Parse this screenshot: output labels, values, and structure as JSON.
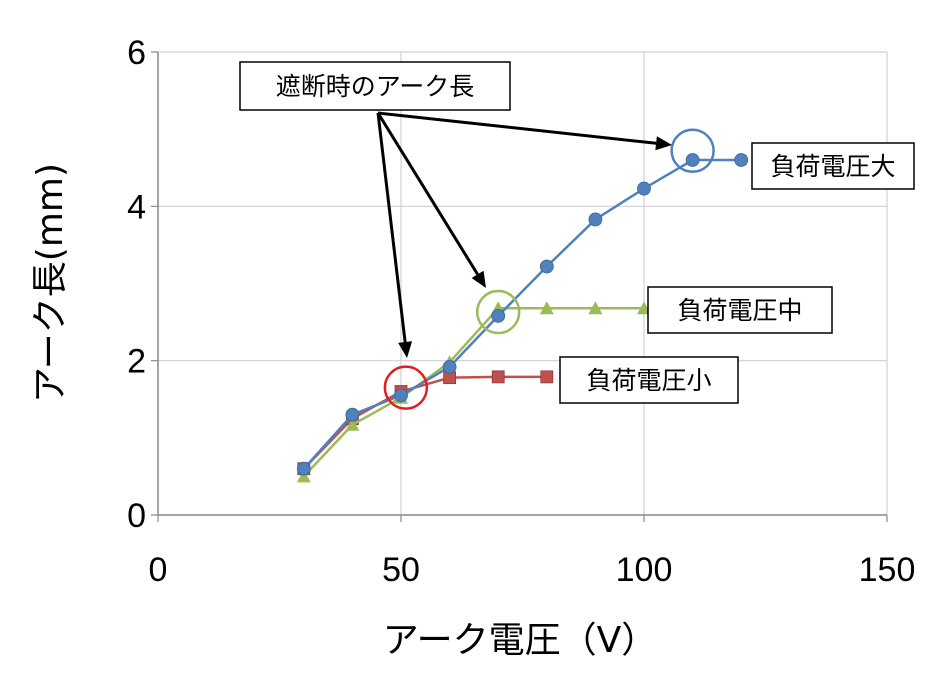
{
  "chart_data": {
    "type": "line",
    "title": "",
    "xlabel": "アーク電圧（V）",
    "ylabel": "アーク長(mm)",
    "xlim": [
      0,
      150
    ],
    "ylim": [
      0,
      6
    ],
    "x_ticks": [
      "0",
      "50",
      "100",
      "150"
    ],
    "y_ticks": [
      "0",
      "2",
      "4",
      "6"
    ],
    "grid": true,
    "legend": "none",
    "series": [
      {
        "name": "負荷電圧小",
        "color": "#c0504d",
        "marker": "square",
        "x": [
          30,
          40,
          50,
          60,
          70,
          80
        ],
        "y": [
          0.6,
          1.25,
          1.6,
          1.78,
          1.79,
          1.79
        ]
      },
      {
        "name": "負荷電圧中",
        "color": "#9bbb59",
        "marker": "triangle",
        "x": [
          30,
          40,
          50,
          60,
          70,
          80,
          90,
          100
        ],
        "y": [
          0.5,
          1.17,
          1.52,
          1.98,
          2.68,
          2.68,
          2.68,
          2.68
        ]
      },
      {
        "name": "負荷電圧大",
        "color": "#4f81bd",
        "marker": "circle",
        "x": [
          30,
          40,
          50,
          60,
          70,
          80,
          90,
          100,
          110,
          120
        ],
        "y": [
          0.6,
          1.3,
          1.55,
          1.92,
          2.58,
          3.22,
          3.83,
          4.23,
          4.6,
          4.6
        ]
      }
    ],
    "annotations": {
      "callout": "遮断時のアーク長",
      "circles": [
        {
          "series": "負荷電圧小",
          "x": 51,
          "y": 1.65,
          "color": "#e02020"
        },
        {
          "series": "負荷電圧中",
          "x": 70,
          "y": 2.63,
          "color": "#9bbb59"
        },
        {
          "series": "負荷電圧大",
          "x": 110,
          "y": 4.72,
          "color": "#4f81bd"
        }
      ]
    }
  }
}
